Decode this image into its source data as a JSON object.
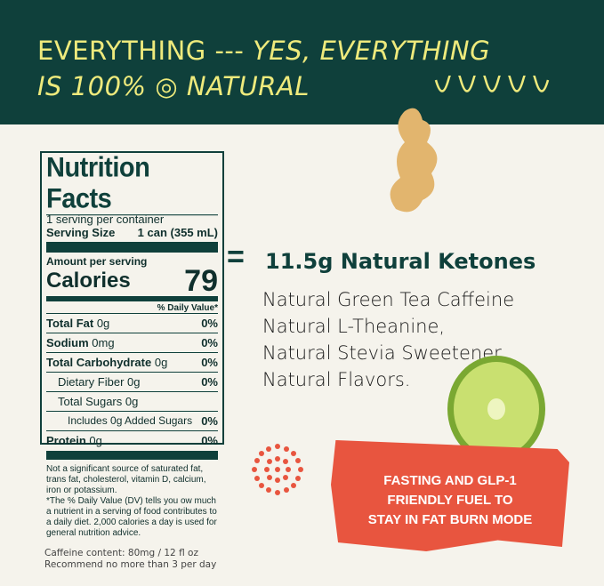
{
  "header": {
    "line1_a": "EVERYTHING ---",
    "line1_b": "YES, EVERYTHING",
    "line2_a": "IS 100%",
    "line2_b": "NATURAL"
  },
  "nutrition": {
    "title": "Nutrition Facts",
    "servings": "1 serving per container",
    "serving_size_label": "Serving Size",
    "serving_size": "1 can (355 mL)",
    "amount": "Amount per serving",
    "calories_label": "Calories",
    "calories": "79",
    "dv_header": "% Daily Value*",
    "rows": [
      {
        "label": "Total Fat",
        "amt": "0g",
        "dv": "0%"
      },
      {
        "label": "Sodium",
        "amt": "0mg",
        "dv": "0%"
      },
      {
        "label": "Total Carbohydrate",
        "amt": "0g",
        "dv": "0%"
      },
      {
        "label": "Dietary Fiber 0g",
        "amt": "",
        "dv": "0%"
      },
      {
        "label": "Total Sugars 0g",
        "amt": "",
        "dv": ""
      },
      {
        "label": "Includes 0g Added Sugars",
        "amt": "",
        "dv": "0%"
      },
      {
        "label": "Protein",
        "amt": "0g",
        "dv": "0%"
      }
    ],
    "footnote1": "Not a significant source of saturated fat, trans fat, cholesterol, vitamin D, calcium, iron or potassium.",
    "footnote2": "*The % Daily Value (DV) tells you  ow much a nutrient in a serving of food contributes to a daily diet. 2,000 calories a day is used for general nutrition advice."
  },
  "caffeine": {
    "line1": "Caffeine content: 80mg / 12 fl oz",
    "line2": "Recommend no more than 3 per day"
  },
  "equals": "=",
  "ketones": "11.5g Natural Ketones",
  "ingredients": [
    "Natural Green Tea Caffeine",
    "Natural L-Theanine,",
    "Natural Stevia Sweetener,",
    "Natural Flavors."
  ],
  "banner": {
    "lines": [
      "FASTING AND GLP-1",
      "FRIENDLY FUEL TO",
      "STAY IN FAT BURN MODE"
    ]
  },
  "colors": {
    "green": "#0f403b",
    "yellow": "#eeea7c",
    "orange": "#e8553f",
    "cream": "#f5f3ec"
  }
}
